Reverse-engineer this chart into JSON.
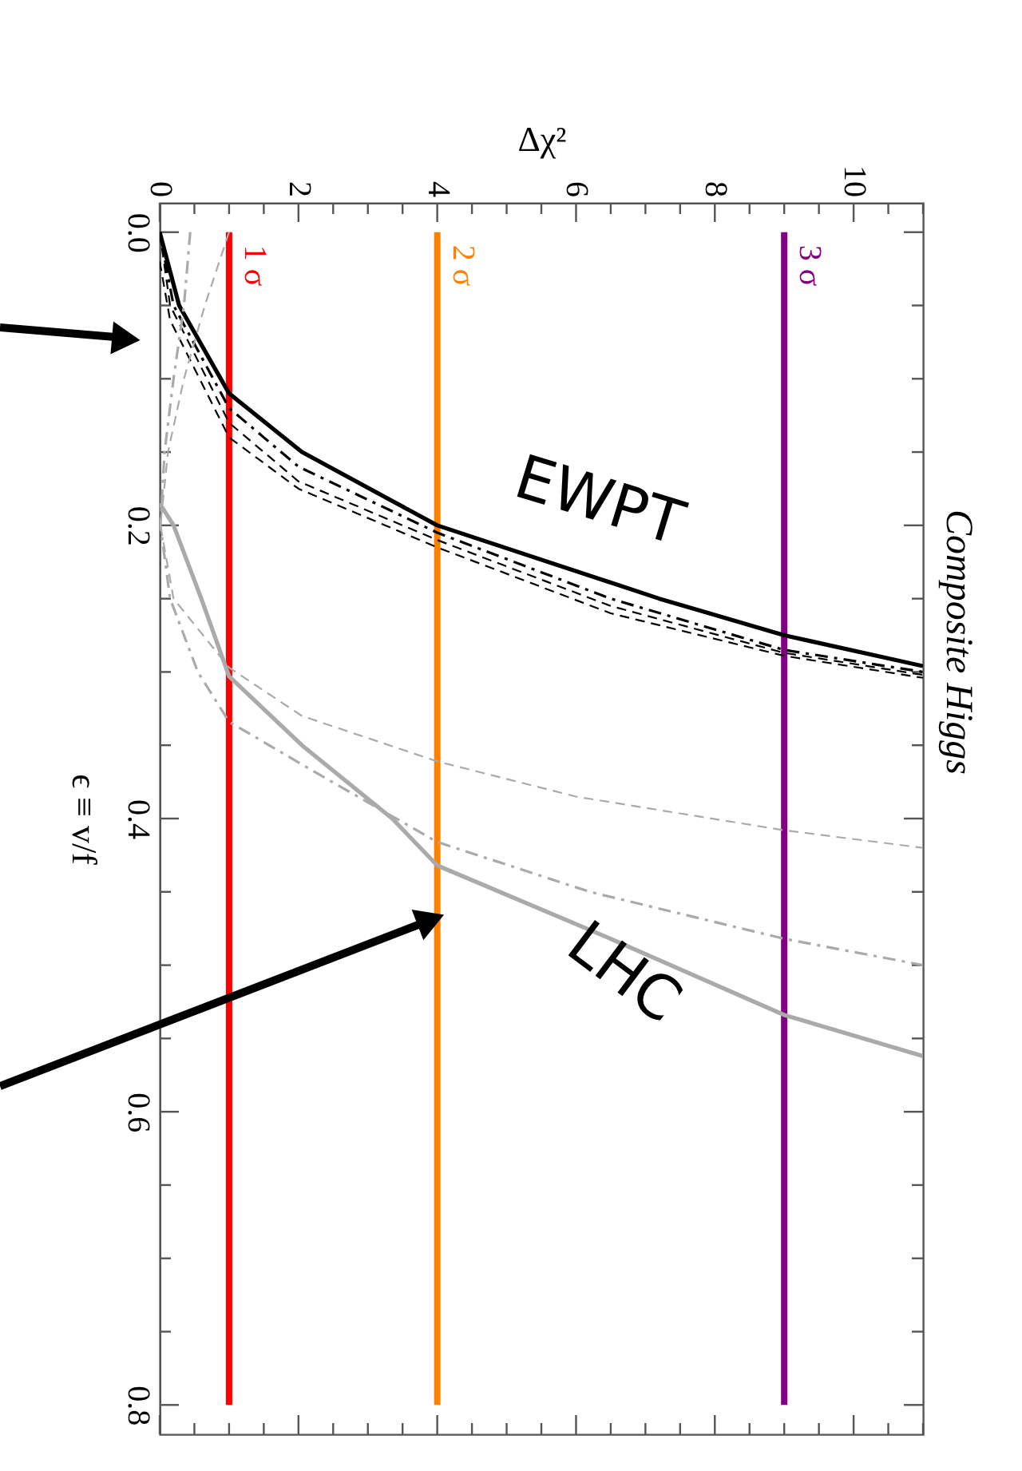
{
  "chart_data": {
    "type": "line",
    "title": "Composite Higgs",
    "xlabel": "Δχ²",
    "ylabel": "ϵ ≡ v/f",
    "xlim": [
      0,
      11
    ],
    "ylim": [
      0.82,
      -0.02
    ],
    "xticks": [
      0,
      {
        "value": 0.5,
        "label": null
      },
      {
        "value": 1,
        "label": null
      },
      {
        "value": 1.5,
        "label": null
      },
      2,
      {
        "value": 2.5,
        "label": null
      },
      {
        "value": 3,
        "label": null
      },
      {
        "value": 3.5,
        "label": null
      },
      4,
      {
        "value": 4.5,
        "label": null
      },
      {
        "value": 5,
        "label": null
      },
      {
        "value": 5.5,
        "label": null
      },
      6,
      {
        "value": 6.5,
        "label": null
      },
      {
        "value": 7,
        "label": null
      },
      {
        "value": 7.5,
        "label": null
      },
      8,
      {
        "value": 8.5,
        "label": null
      },
      {
        "value": 9,
        "label": null
      },
      {
        "value": 9.5,
        "label": null
      },
      10,
      {
        "value": 10.5,
        "label": null
      },
      {
        "value": 11,
        "label": null
      }
    ],
    "yticks": [
      {
        "value": 0,
        "label": "0.0"
      },
      {
        "value": 0.05,
        "label": null
      },
      {
        "value": 0.1,
        "label": null
      },
      {
        "value": 0.15,
        "label": null
      },
      {
        "value": 0.2,
        "label": "0.2"
      },
      {
        "value": 0.25,
        "label": null
      },
      {
        "value": 0.3,
        "label": null
      },
      {
        "value": 0.35,
        "label": null
      },
      {
        "value": 0.4,
        "label": "0.4"
      },
      {
        "value": 0.45,
        "label": null
      },
      {
        "value": 0.5,
        "label": null
      },
      {
        "value": 0.55,
        "label": null
      },
      {
        "value": 0.6,
        "label": "0.6"
      },
      {
        "value": 0.65,
        "label": null
      },
      {
        "value": 0.7,
        "label": null
      },
      {
        "value": 0.75,
        "label": null
      },
      {
        "value": 0.8,
        "label": "0.8"
      }
    ],
    "series": [
      {
        "color": "#000000",
        "line_style": "solid",
        "x": [
          0,
          0.28,
          1,
          2.05,
          4,
          7.2,
          9,
          11
        ],
        "values": [
          0,
          0.05,
          0.11,
          0.15,
          0.2,
          0.25,
          0.275,
          0.296
        ]
      },
      {
        "color": "#000000",
        "line_style": "dashdot",
        "x": [
          0,
          0.2,
          1,
          2,
          4,
          6.5,
          9,
          11
        ],
        "values": [
          0,
          0.05,
          0.12,
          0.16,
          0.205,
          0.25,
          0.285,
          0.3
        ]
      },
      {
        "color": "#000000",
        "line_style": "dashed",
        "x": [
          0,
          0.15,
          1,
          2,
          4,
          6.5,
          9,
          11
        ],
        "values": [
          0,
          0.05,
          0.13,
          0.17,
          0.21,
          0.255,
          0.287,
          0.302
        ]
      },
      {
        "color": "#000000",
        "line_style": "dashed",
        "x": [
          0,
          0.15,
          1,
          2,
          4,
          6.5,
          9,
          11
        ],
        "values": [
          0.02,
          0.06,
          0.14,
          0.175,
          0.215,
          0.26,
          0.289,
          0.304
        ]
      },
      {
        "color": "#aaaaaa",
        "line_style": "solid",
        "x": [
          0,
          0.2,
          0.6,
          1,
          2.05,
          3.35,
          4,
          6.4,
          9,
          11
        ],
        "values": [
          0.185,
          0.2,
          0.25,
          0.303,
          0.35,
          0.4,
          0.432,
          0.48,
          0.534,
          0.562
        ]
      },
      {
        "color": "#aaaaaa",
        "line_style": "dashdot",
        "x": [
          0.44,
          0.35,
          0.2,
          0.07,
          0.01,
          0.15,
          0.55,
          1,
          2.3,
          4,
          6.2,
          9,
          11
        ],
        "values": [
          0,
          0.05,
          0.1,
          0.15,
          0.2,
          0.25,
          0.3,
          0.334,
          0.37,
          0.416,
          0.45,
          0.482,
          0.5
        ]
      },
      {
        "color": "#aaaaaa",
        "line_style": "dashed",
        "x": [
          1,
          0.65,
          0.35,
          0.12,
          0.01,
          0.2,
          1,
          2.05,
          4,
          6,
          9,
          11
        ],
        "values": [
          0,
          0.05,
          0.1,
          0.15,
          0.2,
          0.25,
          0.297,
          0.33,
          0.361,
          0.385,
          0.408,
          0.42
        ]
      }
    ],
    "ref_lines": [
      {
        "axis": "x",
        "value": 1,
        "label": "1 σ",
        "color": "#ff0000"
      },
      {
        "axis": "x",
        "value": 4,
        "label": "2 σ",
        "color": "#ff8000"
      },
      {
        "axis": "x",
        "value": 9,
        "label": "3 σ",
        "color": "#800080"
      }
    ],
    "annotations": [
      "EWPT",
      "LHC"
    ]
  }
}
